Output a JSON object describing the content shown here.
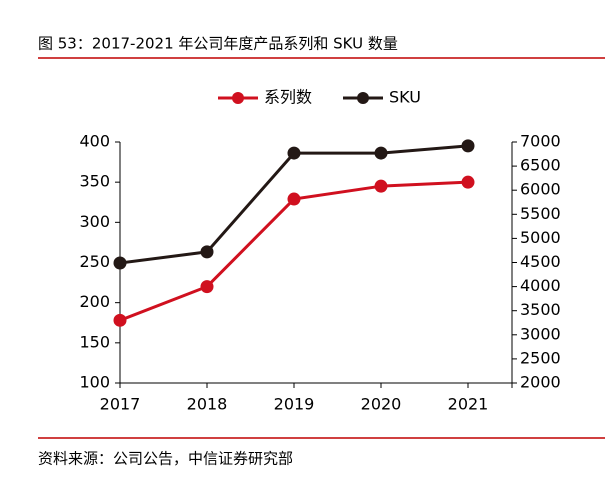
{
  "chart_data": {
    "type": "line",
    "title": "图 53：2017-2021 年公司年度产品系列和 SKU 数量",
    "source": "资料来源：公司公告，中信证券研究部",
    "categories": [
      "2017",
      "2018",
      "2019",
      "2020",
      "2021"
    ],
    "series": [
      {
        "name": "系列数",
        "color": "#d0101f",
        "values": [
          178,
          220,
          329,
          345,
          350
        ]
      },
      {
        "name": "SKU",
        "color": "#231815",
        "axis": "y2",
        "values": [
          4490,
          4720,
          6770,
          6770,
          6920
        ]
      }
    ],
    "ylim": [
      100,
      400
    ],
    "yticks": [
      100,
      150,
      200,
      250,
      300,
      350,
      400
    ],
    "y2lim": [
      2000,
      7000
    ],
    "y2ticks": [
      2000,
      2500,
      3000,
      3500,
      4000,
      4500,
      5000,
      5500,
      6000,
      6500,
      7000
    ]
  }
}
